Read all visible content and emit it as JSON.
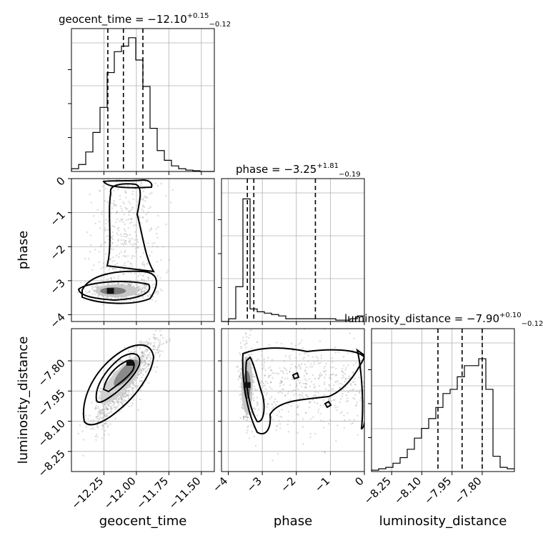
{
  "chart_data": {
    "type": "corner",
    "parameters": [
      "geocent_time",
      "phase",
      "luminosity_distance"
    ],
    "axis_labels": [
      "geocent_time",
      "phase",
      "luminosity_distance"
    ],
    "titles": [
      {
        "prefix": "geocent_time = −12.10",
        "plus": "+0.15",
        "minus": "−0.12",
        "median": -12.1,
        "err_plus": 0.15,
        "err_minus": 0.12
      },
      {
        "prefix": "phase = −3.25",
        "plus": "+1.81",
        "minus": "−0.19",
        "median": -3.25,
        "err_plus": 1.81,
        "err_minus": 0.19
      },
      {
        "prefix": "luminosity_distance = −7.90",
        "plus": "+0.10",
        "minus": "−0.12",
        "median": -7.9,
        "err_plus": 0.1,
        "err_minus": 0.12
      }
    ],
    "ranges": {
      "geocent_time": [
        -12.5,
        -11.4
      ],
      "phase": [
        -4.2,
        0.0
      ],
      "luminosity_distance": [
        -8.35,
        -7.64
      ]
    },
    "ticks": {
      "geocent_time": {
        "values": [
          -12.25,
          -12.0,
          -11.75,
          -11.5
        ],
        "labels": [
          "−12.25",
          "−12.00",
          "−11.75",
          "−11.50"
        ]
      },
      "phase": {
        "values": [
          -4,
          -3,
          -2,
          -1,
          0
        ],
        "labels": [
          "−4",
          "−3",
          "−2",
          "−1",
          "0"
        ]
      },
      "luminosity_distance": {
        "values": [
          -8.25,
          -8.1,
          -7.95,
          -7.8
        ],
        "labels": [
          "−8.25",
          "−8.10",
          "−7.95",
          "−7.80"
        ]
      }
    },
    "quantiles": {
      "geocent_time": [
        -12.22,
        -12.1,
        -11.95
      ],
      "phase": [
        -3.44,
        -3.25,
        -1.44
      ],
      "luminosity_distance": [
        -8.02,
        -7.9,
        -7.8
      ]
    },
    "histograms": {
      "geocent_time": {
        "edges": [
          -12.5,
          -12.445,
          -12.39,
          -12.335,
          -12.28,
          -12.225,
          -12.17,
          -12.115,
          -12.06,
          -12.005,
          -11.95,
          -11.895,
          -11.84,
          -11.785,
          -11.73,
          -11.675,
          -11.62,
          -11.565,
          -11.51,
          -11.455,
          -11.4
        ],
        "counts": [
          0.02,
          0.05,
          0.14,
          0.28,
          0.46,
          0.71,
          0.86,
          0.9,
          0.96,
          0.8,
          0.61,
          0.31,
          0.15,
          0.08,
          0.04,
          0.02,
          0.01,
          0.005,
          0.0,
          0.0
        ]
      },
      "phase": {
        "edges": [
          -4.2,
          -3.99,
          -3.78,
          -3.57,
          -3.36,
          -3.15,
          -2.94,
          -2.73,
          -2.52,
          -2.31,
          -2.1,
          -1.89,
          -1.68,
          -1.47,
          -1.26,
          -1.05,
          -0.84,
          -0.63,
          -0.42,
          -0.21,
          0.0
        ],
        "counts": [
          0.0,
          0.02,
          0.25,
          0.88,
          0.09,
          0.07,
          0.06,
          0.05,
          0.04,
          0.02,
          0.02,
          0.02,
          0.02,
          0.02,
          0.02,
          0.02,
          0.01,
          0.01,
          0.02,
          0.04
        ]
      },
      "luminosity_distance": {
        "edges": [
          -8.35,
          -8.3145,
          -8.279,
          -8.2435,
          -8.208,
          -8.1725,
          -8.137,
          -8.1015,
          -8.066,
          -8.0305,
          -7.995,
          -7.9595,
          -7.924,
          -7.8885,
          -7.853,
          -7.8175,
          -7.782,
          -7.7465,
          -7.711,
          -7.6755,
          -7.64
        ],
        "counts": [
          0.01,
          0.02,
          0.03,
          0.06,
          0.1,
          0.16,
          0.24,
          0.31,
          0.38,
          0.46,
          0.56,
          0.59,
          0.68,
          0.76,
          0.76,
          0.81,
          0.59,
          0.11,
          0.03,
          0.02
        ]
      }
    },
    "density_peaks": {
      "phase_vs_geocent_time": {
        "x": -12.2,
        "y": -3.3
      },
      "luminosity_distance_vs_geocent_time": {
        "x": -12.05,
        "y": -7.81
      },
      "luminosity_distance_vs_phase": {
        "x": -3.45,
        "y": -7.92
      }
    },
    "grid": true
  }
}
